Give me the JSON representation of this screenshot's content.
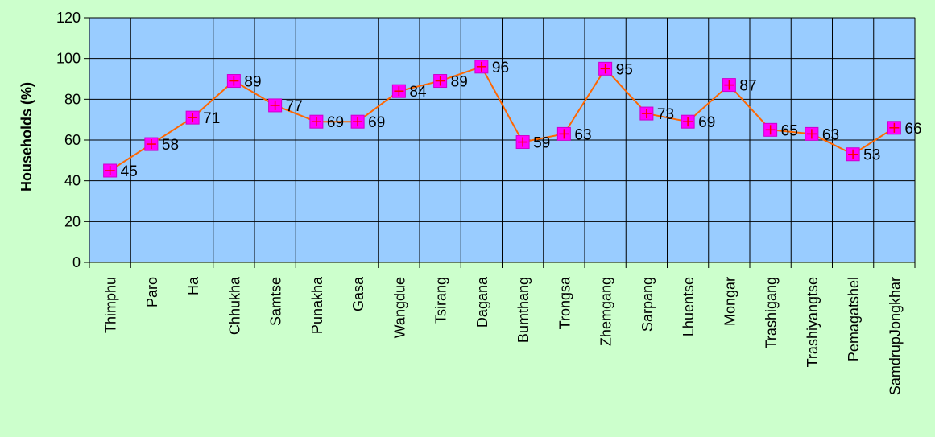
{
  "chart_data": {
    "type": "line",
    "title": "",
    "xlabel": "",
    "ylabel": "Households (%)",
    "ylim": [
      0,
      120
    ],
    "yticks": [
      0,
      20,
      40,
      60,
      80,
      100,
      120
    ],
    "grid": "vertical and horizontal",
    "categories": [
      "Thimphu",
      "Paro",
      "Ha",
      "Chhukha",
      "Samtse",
      "Punakha",
      "Gasa",
      "Wangdue",
      "Tsirang",
      "Dagana",
      "Bumthang",
      "Trongsa",
      "Zhemgang",
      "Sarpang",
      "Lhuentse",
      "Mongar",
      "Trashigang",
      "Trashiyangtse",
      "Pemagatshel",
      "SamdrupJongkhar"
    ],
    "series": [
      {
        "values": [
          45,
          58,
          71,
          89,
          77,
          69,
          69,
          84,
          89,
          96,
          59,
          63,
          95,
          73,
          69,
          87,
          65,
          63,
          53,
          66
        ]
      }
    ],
    "colors": {
      "page_background": "#ccffcc",
      "plot_background": "#99ccff",
      "gridline": "#000000",
      "line": "#ff6600",
      "marker_fill": "#ff00ff",
      "marker_cross": "#ff0000"
    }
  }
}
